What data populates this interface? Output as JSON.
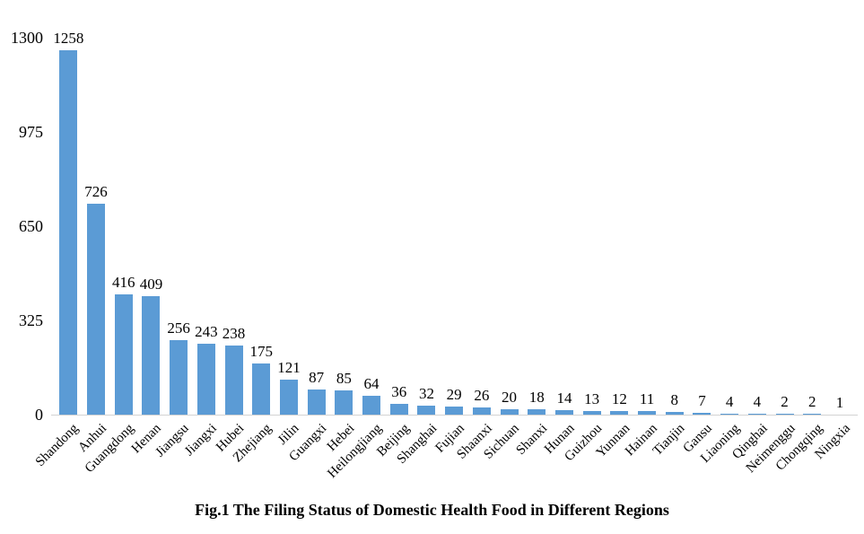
{
  "figure": {
    "caption": "Fig.1 The Filing Status of Domestic Health Food in Different Regions"
  },
  "chart_data": {
    "type": "bar",
    "title": "Fig.1 The Filing Status of Domestic Health Food in Different Regions",
    "categories": [
      "Shandong",
      "Anhui",
      "Guangdong",
      "Henan",
      "Jiangsu",
      "Jiangxi",
      "Hubei",
      "Zhejiang",
      "Jilin",
      "Guangxi",
      "Hebei",
      "Heilongjiang",
      "Beijing",
      "Shanghai",
      "Fujian",
      "Shaanxi",
      "Sichuan",
      "Shanxi",
      "Hunan",
      "Guizhou",
      "Yunnan",
      "Hainan",
      "Tianjin",
      "Gansu",
      "Liaoning",
      "Qinghai",
      "Neimenggu",
      "Chongqing",
      "Ningxia"
    ],
    "values": [
      1258,
      726,
      416,
      409,
      256,
      243,
      238,
      175,
      121,
      87,
      85,
      64,
      36,
      32,
      29,
      26,
      20,
      18,
      14,
      13,
      12,
      11,
      8,
      7,
      4,
      4,
      2,
      2,
      1
    ],
    "yticks": [
      0,
      325,
      650,
      975,
      1300
    ],
    "ylim": [
      0,
      1300
    ],
    "xlabel": "",
    "ylabel": "",
    "grid": false,
    "legend": "none",
    "data_labels": true,
    "bar_color": "#5b9bd5",
    "axis_line_color": "#d3d3d3"
  }
}
